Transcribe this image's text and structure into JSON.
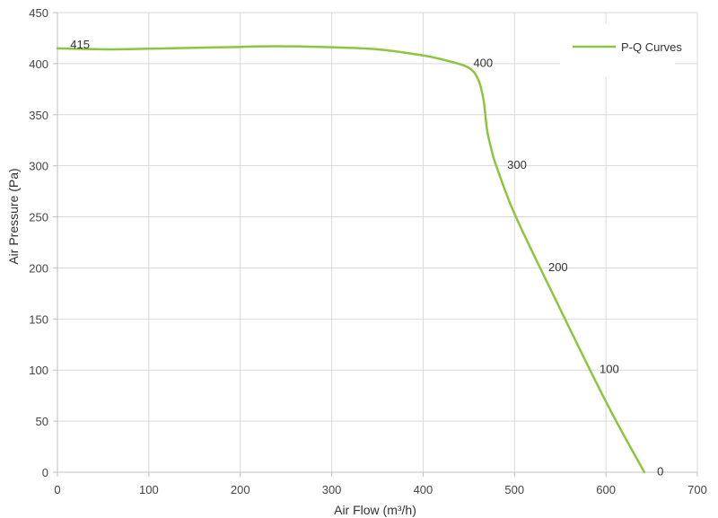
{
  "chart_data": {
    "type": "line",
    "xlabel": "Air Flow  (m³/h)",
    "ylabel": "Air Pressure  (Pa)",
    "xlim": [
      0,
      700
    ],
    "ylim": [
      0,
      450
    ],
    "xticks": [
      0,
      100,
      200,
      300,
      400,
      500,
      600,
      700
    ],
    "yticks": [
      0,
      50,
      100,
      150,
      200,
      250,
      300,
      350,
      400,
      450
    ],
    "grid": true,
    "legend": {
      "position": "top-right"
    },
    "series": [
      {
        "name": "P-Q Curves",
        "color": "#8cc63f",
        "x": [
          0,
          60,
          120,
          180,
          240,
          300,
          350,
          400,
          430,
          450,
          460,
          466,
          470,
          475,
          480,
          500,
          540,
          600,
          642
        ],
        "y": [
          415,
          414,
          415,
          416,
          417,
          416,
          414,
          408,
          402,
          396,
          385,
          365,
          335,
          315,
          300,
          253,
          178,
          69,
          0
        ]
      }
    ],
    "annotations": [
      {
        "text": "415",
        "x": 14,
        "y": 415
      },
      {
        "text": "400",
        "x": 455,
        "y": 397
      },
      {
        "text": "300",
        "x": 492,
        "y": 297
      },
      {
        "text": "200",
        "x": 537,
        "y": 197
      },
      {
        "text": "100",
        "x": 593,
        "y": 97
      },
      {
        "text": "0",
        "x": 656,
        "y": -3
      }
    ]
  }
}
